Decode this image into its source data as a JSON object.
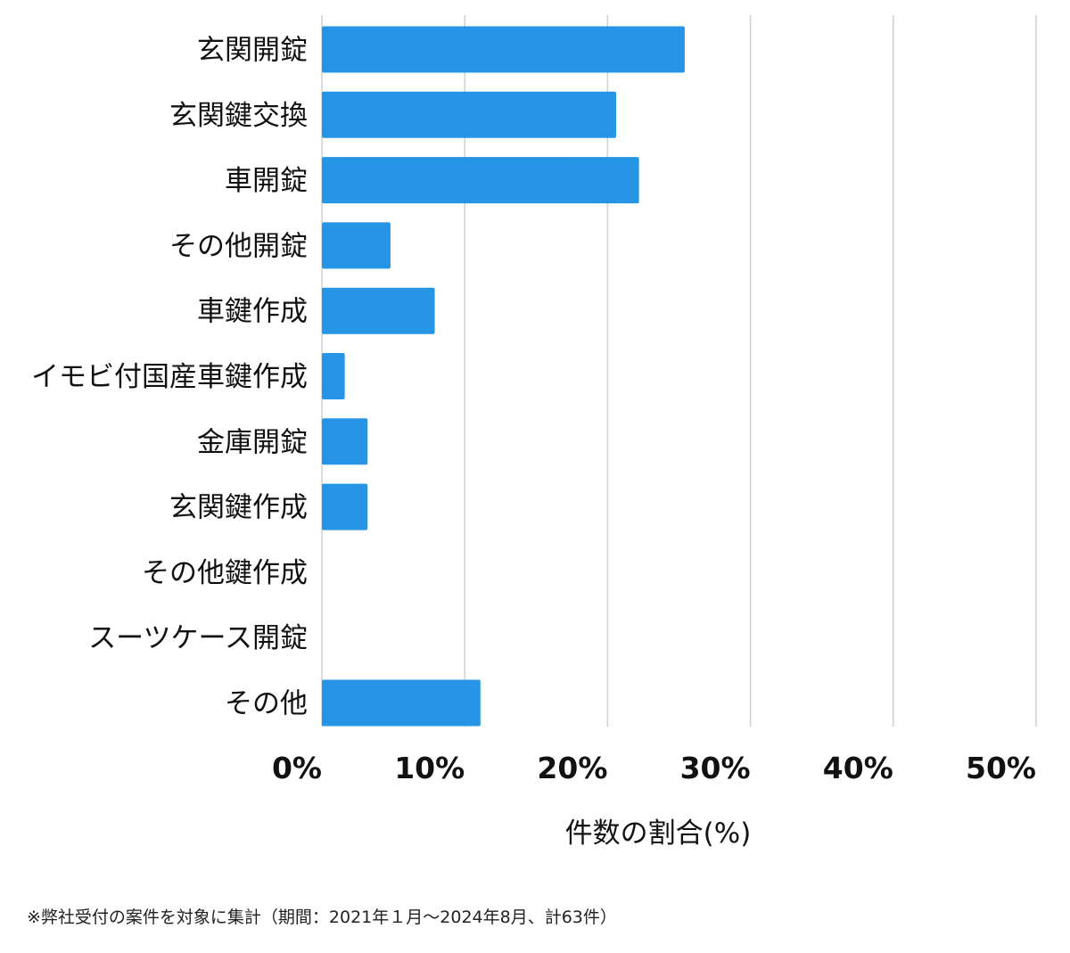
{
  "chart_data": {
    "type": "bar",
    "orientation": "horizontal",
    "categories": [
      "玄関開錠",
      "玄関鍵交換",
      "車開錠",
      "その他開錠",
      "車鍵作成",
      "イモビ付国産車鍵作成",
      "金庫開錠",
      "玄関鍵作成",
      "その他鍵作成",
      "スーツケース開錠",
      "その他"
    ],
    "values": [
      25.4,
      20.6,
      22.2,
      4.8,
      7.9,
      1.6,
      3.2,
      3.2,
      0,
      0,
      11.1
    ],
    "unit": "%",
    "xlabel": "件数の割合(%)",
    "ylabel": "",
    "xlim": [
      0,
      50
    ],
    "xticks": [
      0,
      10,
      20,
      30,
      40,
      50
    ],
    "xtick_labels": [
      "0%",
      "10%",
      "20%",
      "30%",
      "40%",
      "50%"
    ],
    "grid": "vertical",
    "bar_color": "#2695e6"
  },
  "footnote": "※弊社受付の案件を対象に集計（期間：2021年１月～2024年8月、計63件）"
}
